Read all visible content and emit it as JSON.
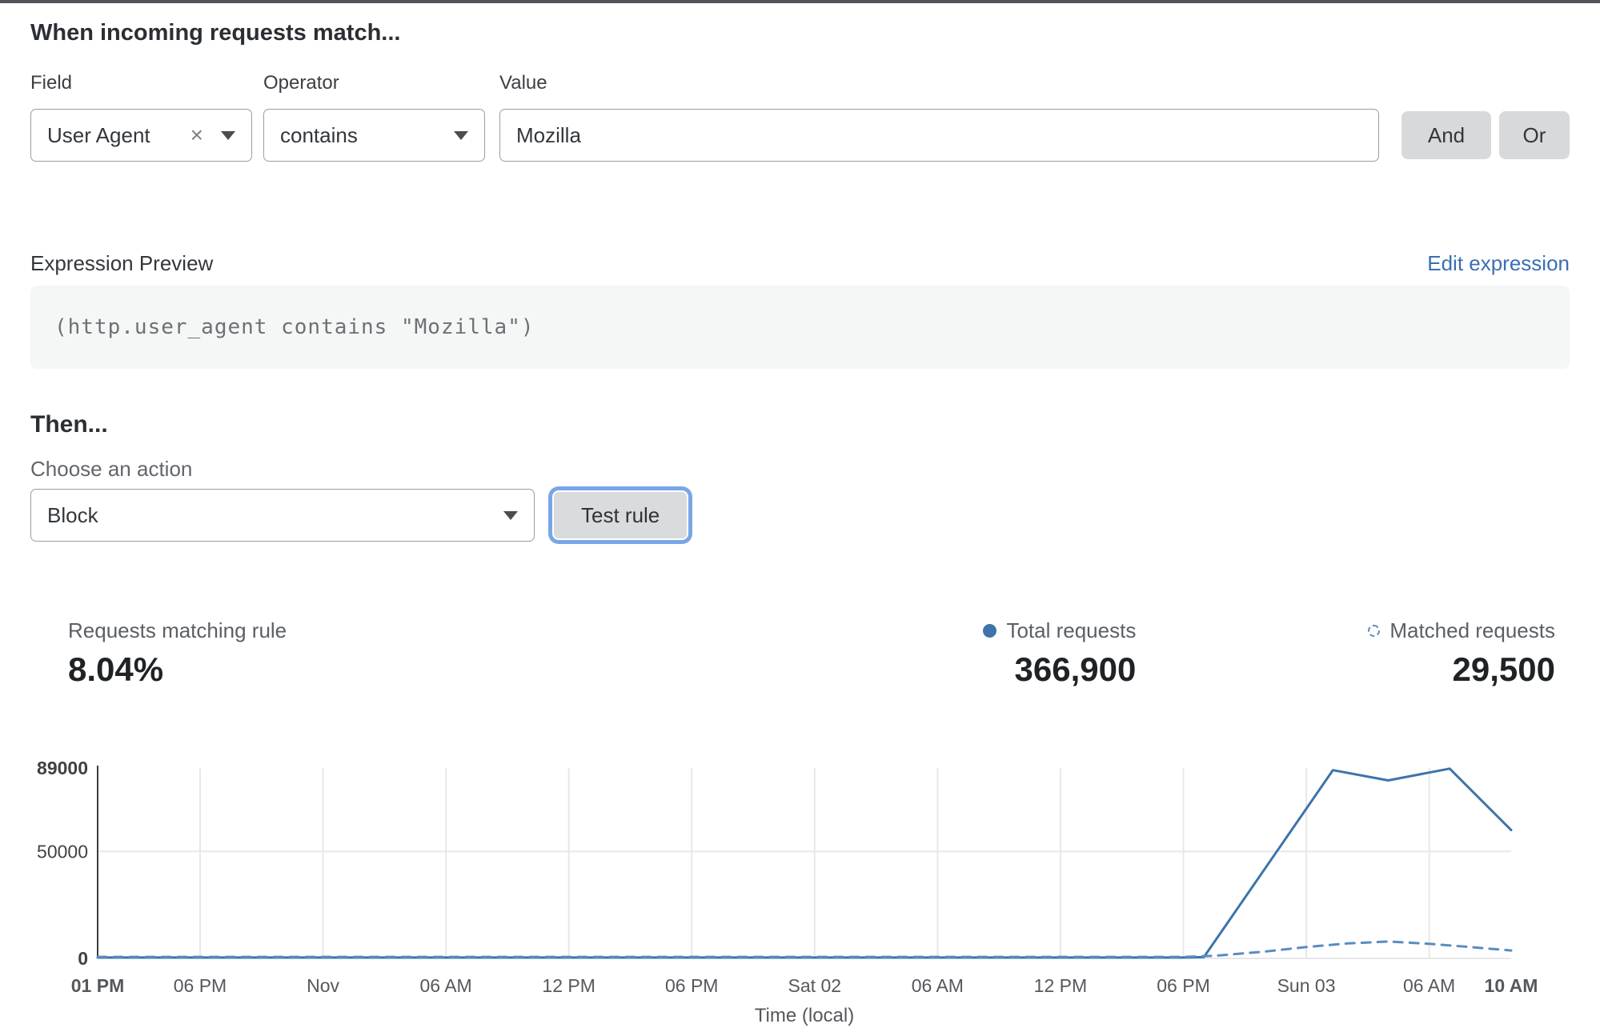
{
  "rule_builder": {
    "heading": "When incoming requests match...",
    "field": {
      "label": "Field",
      "value": "User Agent",
      "clear_icon": "×"
    },
    "operator": {
      "label": "Operator",
      "value": "contains"
    },
    "value_field": {
      "label": "Value",
      "value": "Mozilla"
    },
    "and_button": "And",
    "or_button": "Or"
  },
  "expression": {
    "label": "Expression Preview",
    "edit_link": "Edit expression",
    "code": "(http.user_agent contains \"Mozilla\")"
  },
  "action": {
    "heading": "Then...",
    "choose_label": "Choose an action",
    "selected_action": "Block",
    "test_button": "Test rule"
  },
  "stats": {
    "matching": {
      "label": "Requests matching rule",
      "value": "8.04%"
    },
    "total": {
      "label": "Total requests",
      "value": "366,900"
    },
    "matched": {
      "label": "Matched requests",
      "value": "29,500"
    }
  },
  "colors": {
    "accent_link_blue": "#3a6fb3",
    "focus_ring_blue": "#79a6e6",
    "chart_solid_blue": "#3d74a9",
    "chart_dashed_blue": "#5b8bc0",
    "gridline_gray": "#e7e8e9"
  },
  "chart_data": {
    "type": "line",
    "title": "",
    "xlabel": "Time (local)",
    "ylabel": "",
    "x_unit": "hours from first tick (Thu 01 PM, window spans to Sun 10 AM)",
    "ylim": [
      0,
      89000
    ],
    "grid": true,
    "legend_position": "top-right stats row",
    "yticks": [
      {
        "value": 0,
        "label": "0",
        "bold": true
      },
      {
        "value": 50000,
        "label": "50000",
        "bold": false
      },
      {
        "value": 89000,
        "label": "89000",
        "bold": true
      }
    ],
    "xticks": [
      {
        "h": 0,
        "label": "01 PM",
        "bold": true
      },
      {
        "h": 5,
        "label": "06 PM",
        "bold": false
      },
      {
        "h": 11,
        "label": "Nov",
        "bold": false
      },
      {
        "h": 17,
        "label": "06 AM",
        "bold": false
      },
      {
        "h": 23,
        "label": "12 PM",
        "bold": false
      },
      {
        "h": 29,
        "label": "06 PM",
        "bold": false
      },
      {
        "h": 35,
        "label": "Sat 02",
        "bold": false
      },
      {
        "h": 41,
        "label": "06 AM",
        "bold": false
      },
      {
        "h": 47,
        "label": "12 PM",
        "bold": false
      },
      {
        "h": 53,
        "label": "06 PM",
        "bold": false
      },
      {
        "h": 59,
        "label": "Sun 03",
        "bold": false
      },
      {
        "h": 65,
        "label": "06 AM",
        "bold": false
      },
      {
        "h": 69,
        "label": "10 AM",
        "bold": true
      }
    ],
    "series": [
      {
        "name": "Total requests",
        "style": "solid",
        "color": "#3d74a9",
        "points": [
          [
            0,
            400
          ],
          [
            5,
            400
          ],
          [
            11,
            400
          ],
          [
            17,
            400
          ],
          [
            23,
            400
          ],
          [
            29,
            400
          ],
          [
            35,
            400
          ],
          [
            41,
            400
          ],
          [
            47,
            400
          ],
          [
            53,
            400
          ],
          [
            54,
            600
          ],
          [
            60.3,
            88000
          ],
          [
            63,
            83200
          ],
          [
            66,
            88700
          ],
          [
            69,
            60000
          ]
        ]
      },
      {
        "name": "Matched requests",
        "style": "dashed",
        "color": "#5b8bc0",
        "points": [
          [
            0,
            700
          ],
          [
            5,
            700
          ],
          [
            11,
            700
          ],
          [
            17,
            700
          ],
          [
            23,
            700
          ],
          [
            29,
            700
          ],
          [
            35,
            700
          ],
          [
            41,
            700
          ],
          [
            47,
            700
          ],
          [
            53,
            700
          ],
          [
            54.5,
            1200
          ],
          [
            57,
            3200
          ],
          [
            59,
            5300
          ],
          [
            61,
            7000
          ],
          [
            63,
            7900
          ],
          [
            65,
            6800
          ],
          [
            67,
            5300
          ],
          [
            69,
            3700
          ]
        ]
      }
    ]
  }
}
